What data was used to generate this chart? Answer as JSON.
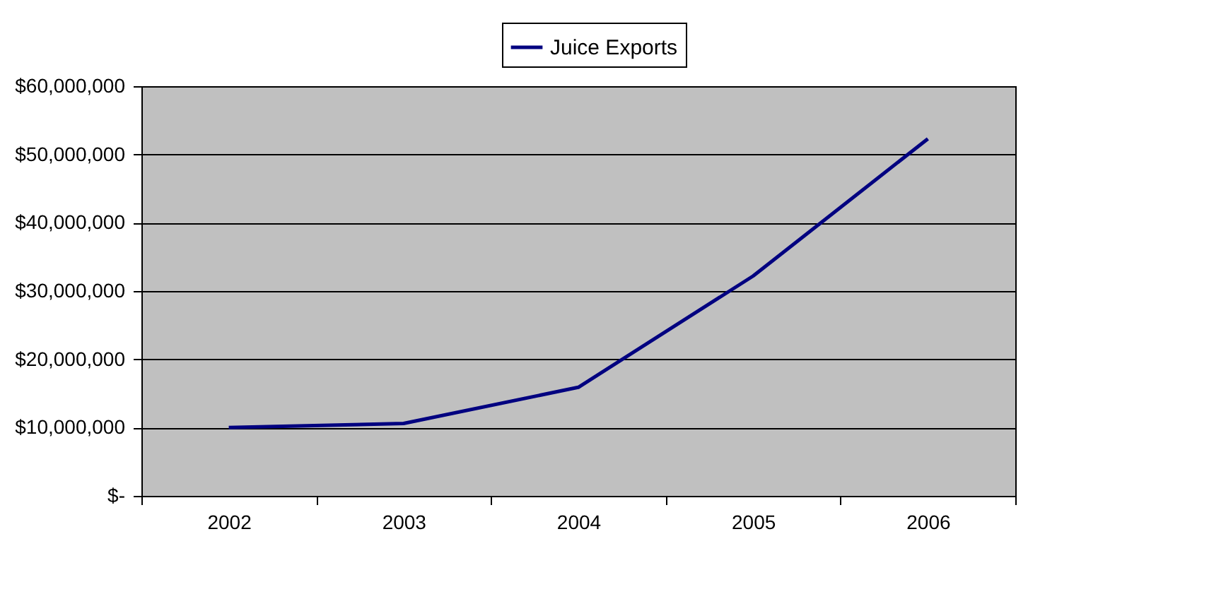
{
  "chart_data": {
    "type": "line",
    "categories": [
      "2002",
      "2003",
      "2004",
      "2005",
      "2006"
    ],
    "series": [
      {
        "name": "Juice Exports",
        "color": "#000080",
        "values": [
          10000000,
          10600000,
          15900000,
          32200000,
          52300000
        ]
      }
    ],
    "ylim": [
      0,
      60000000
    ],
    "yticks": [
      {
        "value": 0,
        "label": "$-"
      },
      {
        "value": 10000000,
        "label": "$10,000,000"
      },
      {
        "value": 20000000,
        "label": "$20,000,000"
      },
      {
        "value": 30000000,
        "label": "$30,000,000"
      },
      {
        "value": 40000000,
        "label": "$40,000,000"
      },
      {
        "value": 50000000,
        "label": "$50,000,000"
      },
      {
        "value": 60000000,
        "label": "$60,000,000"
      }
    ],
    "grid": "y",
    "legend": "top",
    "marker": "none",
    "line_style": "solid"
  }
}
